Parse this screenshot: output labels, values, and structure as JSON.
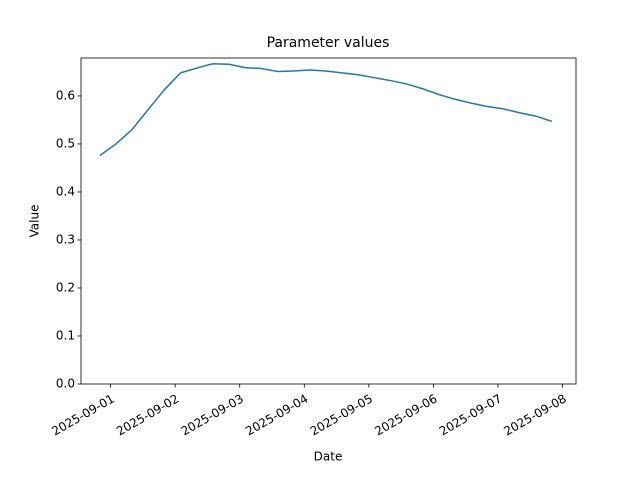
{
  "chart_data": {
    "type": "line",
    "title": "Parameter values",
    "xlabel": "Date",
    "ylabel": "Value",
    "x": [
      "2025-08-31T20:00",
      "2025-09-01T02:00",
      "2025-09-01T08:00",
      "2025-09-01T14:00",
      "2025-09-01T20:00",
      "2025-09-02T02:00",
      "2025-09-02T08:00",
      "2025-09-02T14:00",
      "2025-09-02T20:00",
      "2025-09-03T02:00",
      "2025-09-03T08:00",
      "2025-09-03T14:00",
      "2025-09-03T20:00",
      "2025-09-04T02:00",
      "2025-09-04T08:00",
      "2025-09-04T14:00",
      "2025-09-04T20:00",
      "2025-09-05T02:00",
      "2025-09-05T08:00",
      "2025-09-05T14:00",
      "2025-09-05T20:00",
      "2025-09-06T02:00",
      "2025-09-06T08:00",
      "2025-09-06T14:00",
      "2025-09-06T20:00",
      "2025-09-07T02:00",
      "2025-09-07T08:00",
      "2025-09-07T14:00",
      "2025-09-07T20:00"
    ],
    "series": [
      {
        "color": "#1f77b4",
        "values": [
          0.476,
          0.5,
          0.53,
          0.572,
          0.613,
          0.648,
          0.658,
          0.667,
          0.666,
          0.659,
          0.657,
          0.651,
          0.652,
          0.654,
          0.652,
          0.648,
          0.644,
          0.638,
          0.632,
          0.625,
          0.615,
          0.603,
          0.593,
          0.585,
          0.578,
          0.573,
          0.565,
          0.558,
          0.547
        ]
      }
    ],
    "xlim": [
      "2025-08-31T13:00",
      "2025-09-08T05:00"
    ],
    "xticks": [
      "2025-09-01",
      "2025-09-02",
      "2025-09-03",
      "2025-09-04",
      "2025-09-05",
      "2025-09-06",
      "2025-09-07",
      "2025-09-08"
    ],
    "ylim": [
      0,
      0.679
    ],
    "yticks": [
      {
        "value": 0,
        "label": "0.0"
      },
      0.1,
      0.2,
      0.3,
      0.4,
      0.5,
      0.6
    ],
    "grid": false
  }
}
